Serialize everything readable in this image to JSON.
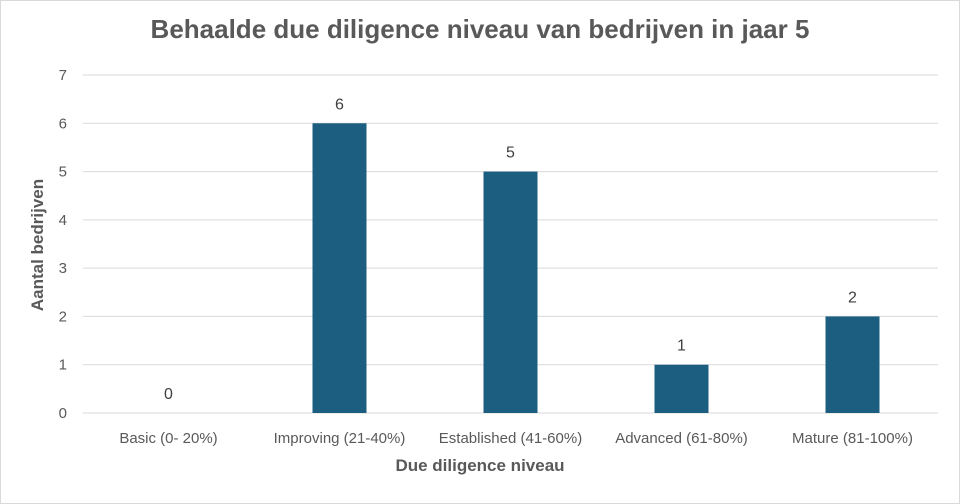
{
  "chart_data": {
    "type": "bar",
    "title": "Behaalde due diligence niveau van bedrijven in jaar 5",
    "xlabel": "Due diligence niveau",
    "ylabel": "Aantal bedrijven",
    "categories": [
      "Basic (0- 20%)",
      "Improving (21-40%)",
      "Established (41-60%)",
      "Advanced (61-80%)",
      "Mature (81-100%)"
    ],
    "values": [
      0,
      6,
      5,
      1,
      2
    ],
    "ylim": [
      0,
      7
    ],
    "yticks": [
      0,
      1,
      2,
      3,
      4,
      5,
      6,
      7
    ],
    "grid": true,
    "legend": "none",
    "data_labels": true,
    "bar_color": "#1b5e80",
    "gridline_color": "#d9d9d9",
    "text_color": "#595959"
  }
}
